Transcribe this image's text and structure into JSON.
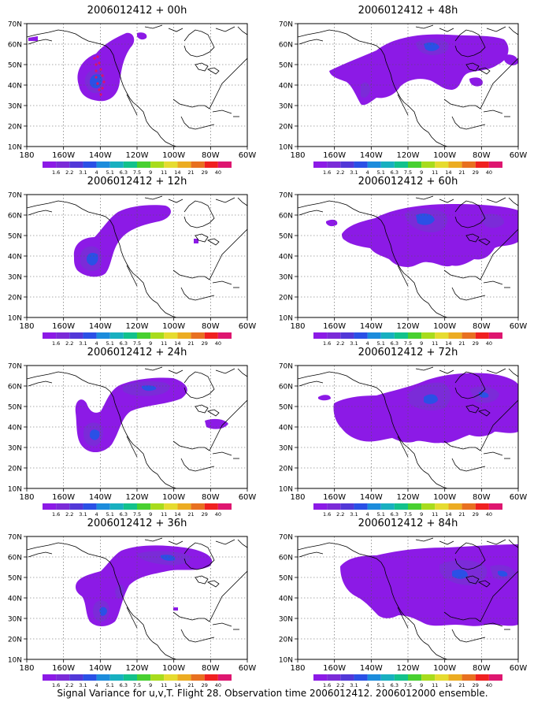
{
  "caption": "Signal Variance for u,v,T. Flight 28. Observation time 2006012412. 2006012000 ensemble.",
  "map": {
    "lon_ticks": [
      "180",
      "160W",
      "140W",
      "120W",
      "100W",
      "80W",
      "60W"
    ],
    "lat_ticks": [
      "70N",
      "60N",
      "50N",
      "40N",
      "30N",
      "20N",
      "10N"
    ],
    "lon_range": [
      180,
      300
    ],
    "lat_range": [
      10,
      70
    ]
  },
  "colorbar": {
    "labels": [
      "1.6",
      "2.2",
      "3.1",
      "4",
      "5.1",
      "6.3",
      "7.5",
      "9",
      "11",
      "14",
      "21",
      "29",
      "40"
    ],
    "colors": [
      "#8c1ae6",
      "#7b2bd8",
      "#5238d8",
      "#2a50e6",
      "#1c8cdc",
      "#18b0c0",
      "#12c28c",
      "#48d030",
      "#a8dc1c",
      "#e6dc30",
      "#ecac22",
      "#e87020",
      "#f02020",
      "#de1670"
    ]
  },
  "panels": [
    {
      "id": "p00",
      "title": "2006012412 + 00h"
    },
    {
      "id": "p48",
      "title": "2006012412 + 48h"
    },
    {
      "id": "p12",
      "title": "2006012412 + 12h"
    },
    {
      "id": "p60",
      "title": "2006012412 + 60h"
    },
    {
      "id": "p24",
      "title": "2006012412 + 24h"
    },
    {
      "id": "p72",
      "title": "2006012412 + 72h"
    },
    {
      "id": "p36",
      "title": "2006012412 + 36h"
    },
    {
      "id": "p84",
      "title": "2006012412 + 84h"
    }
  ]
}
